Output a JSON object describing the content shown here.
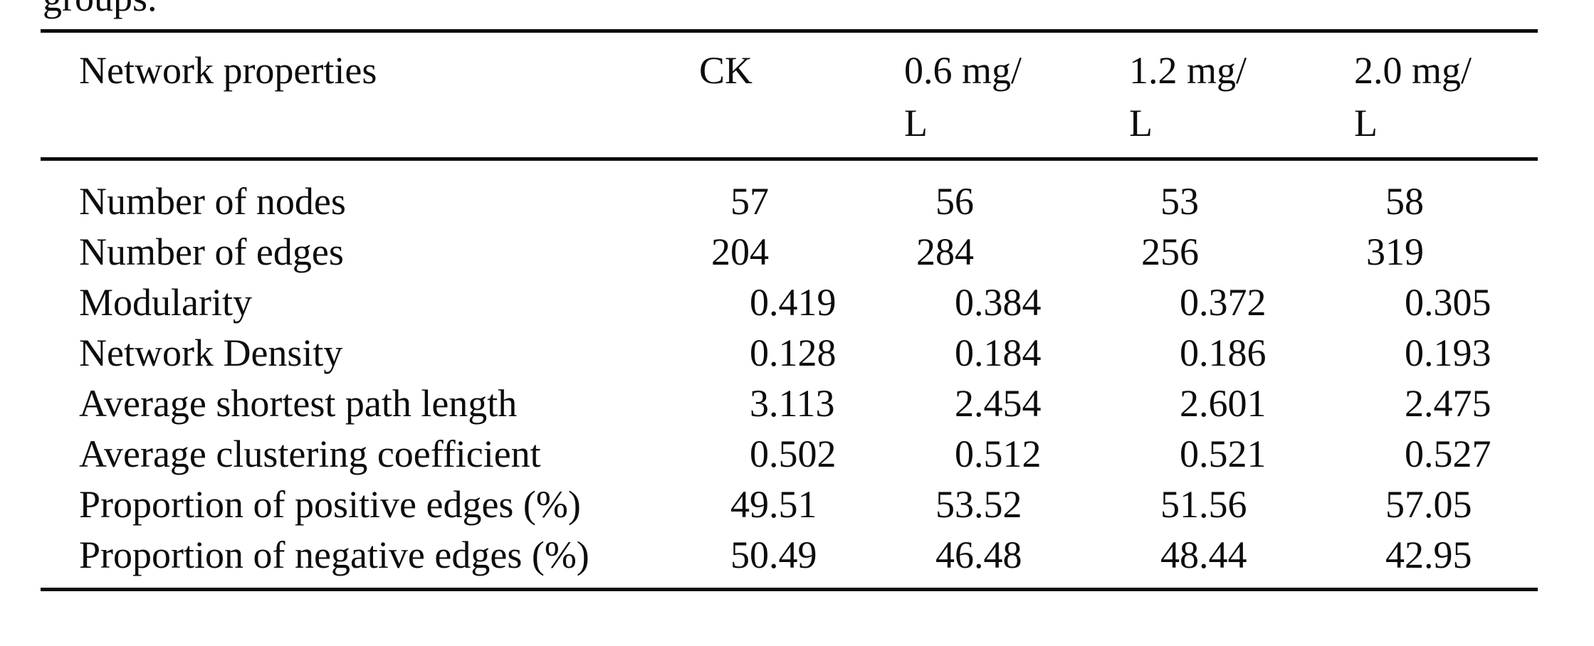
{
  "caption_fragment": "groups.",
  "colors": {
    "text": "#0d0d0d",
    "rule": "#0d0d0d",
    "background": "#ffffff"
  },
  "table": {
    "header": {
      "label": "Network properties",
      "columns": [
        {
          "lines": [
            "CK",
            ""
          ]
        },
        {
          "lines": [
            "0.6 mg/",
            "L"
          ]
        },
        {
          "lines": [
            "1.2 mg/",
            "L"
          ]
        },
        {
          "lines": [
            "2.0 mg/",
            "L"
          ]
        }
      ]
    },
    "rows": [
      {
        "label": "Number of nodes",
        "values": [
          {
            "i": "57",
            "f": ""
          },
          {
            "i": "56",
            "f": ""
          },
          {
            "i": "53",
            "f": ""
          },
          {
            "i": "58",
            "f": ""
          }
        ]
      },
      {
        "label": "Number of edges",
        "values": [
          {
            "i": "204",
            "f": ""
          },
          {
            "i": "284",
            "f": ""
          },
          {
            "i": "256",
            "f": ""
          },
          {
            "i": "319",
            "f": ""
          }
        ]
      },
      {
        "label": "Modularity",
        "values": [
          {
            "i": "0",
            "f": ".419"
          },
          {
            "i": "0",
            "f": ".384"
          },
          {
            "i": "0",
            "f": ".372"
          },
          {
            "i": "0",
            "f": ".305"
          }
        ]
      },
      {
        "label": "Network Density",
        "values": [
          {
            "i": "0",
            "f": ".128"
          },
          {
            "i": "0",
            "f": ".184"
          },
          {
            "i": "0",
            "f": ".186"
          },
          {
            "i": "0",
            "f": ".193"
          }
        ]
      },
      {
        "label": "Average shortest path length",
        "values": [
          {
            "i": "3",
            "f": ".113"
          },
          {
            "i": "2",
            "f": ".454"
          },
          {
            "i": "2",
            "f": ".601"
          },
          {
            "i": "2",
            "f": ".475"
          }
        ]
      },
      {
        "label": "Average clustering coefficient",
        "values": [
          {
            "i": "0",
            "f": ".502"
          },
          {
            "i": "0",
            "f": ".512"
          },
          {
            "i": "0",
            "f": ".521"
          },
          {
            "i": "0",
            "f": ".527"
          }
        ]
      },
      {
        "label": "Proportion of positive edges (%)",
        "values": [
          {
            "i": "49",
            "f": ".51"
          },
          {
            "i": "53",
            "f": ".52"
          },
          {
            "i": "51",
            "f": ".56"
          },
          {
            "i": "57",
            "f": ".05"
          }
        ]
      },
      {
        "label": "Proportion of negative edges (%)",
        "values": [
          {
            "i": "50",
            "f": ".49"
          },
          {
            "i": "46",
            "f": ".48"
          },
          {
            "i": "48",
            "f": ".44"
          },
          {
            "i": "42",
            "f": ".95"
          }
        ]
      }
    ]
  }
}
